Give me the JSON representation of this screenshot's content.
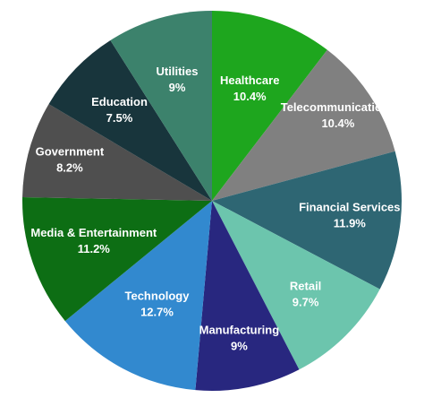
{
  "chart_data": {
    "type": "pie",
    "start_angle_deg": 0,
    "direction": "clockwise",
    "slices": [
      {
        "label": "Healthcare",
        "value": 10.4,
        "value_label": "10.4%",
        "color": "#1ea61e"
      },
      {
        "label": "Telecommunications",
        "value": 10.4,
        "value_label": "10.4%",
        "color": "#808080"
      },
      {
        "label": "Financial Services",
        "value": 11.9,
        "value_label": "11.9%",
        "color": "#2e6673"
      },
      {
        "label": "Retail",
        "value": 9.7,
        "value_label": "9.7%",
        "color": "#6cc5ad"
      },
      {
        "label": "Manufacturing",
        "value": 9,
        "value_label": "9%",
        "color": "#28277f"
      },
      {
        "label": "Technology",
        "value": 12.7,
        "value_label": "12.7%",
        "color": "#3289cf"
      },
      {
        "label": "Media & Entertainment",
        "value": 11.2,
        "value_label": "11.2%",
        "color": "#0d6e14"
      },
      {
        "label": "Government",
        "value": 8.2,
        "value_label": "8.2%",
        "color": "#4f4f4f"
      },
      {
        "label": "Education",
        "value": 7.5,
        "value_label": "7.5%",
        "color": "#18353c"
      },
      {
        "label": "Utilities",
        "value": 9,
        "value_label": "9%",
        "color": "#3c826c"
      }
    ]
  }
}
